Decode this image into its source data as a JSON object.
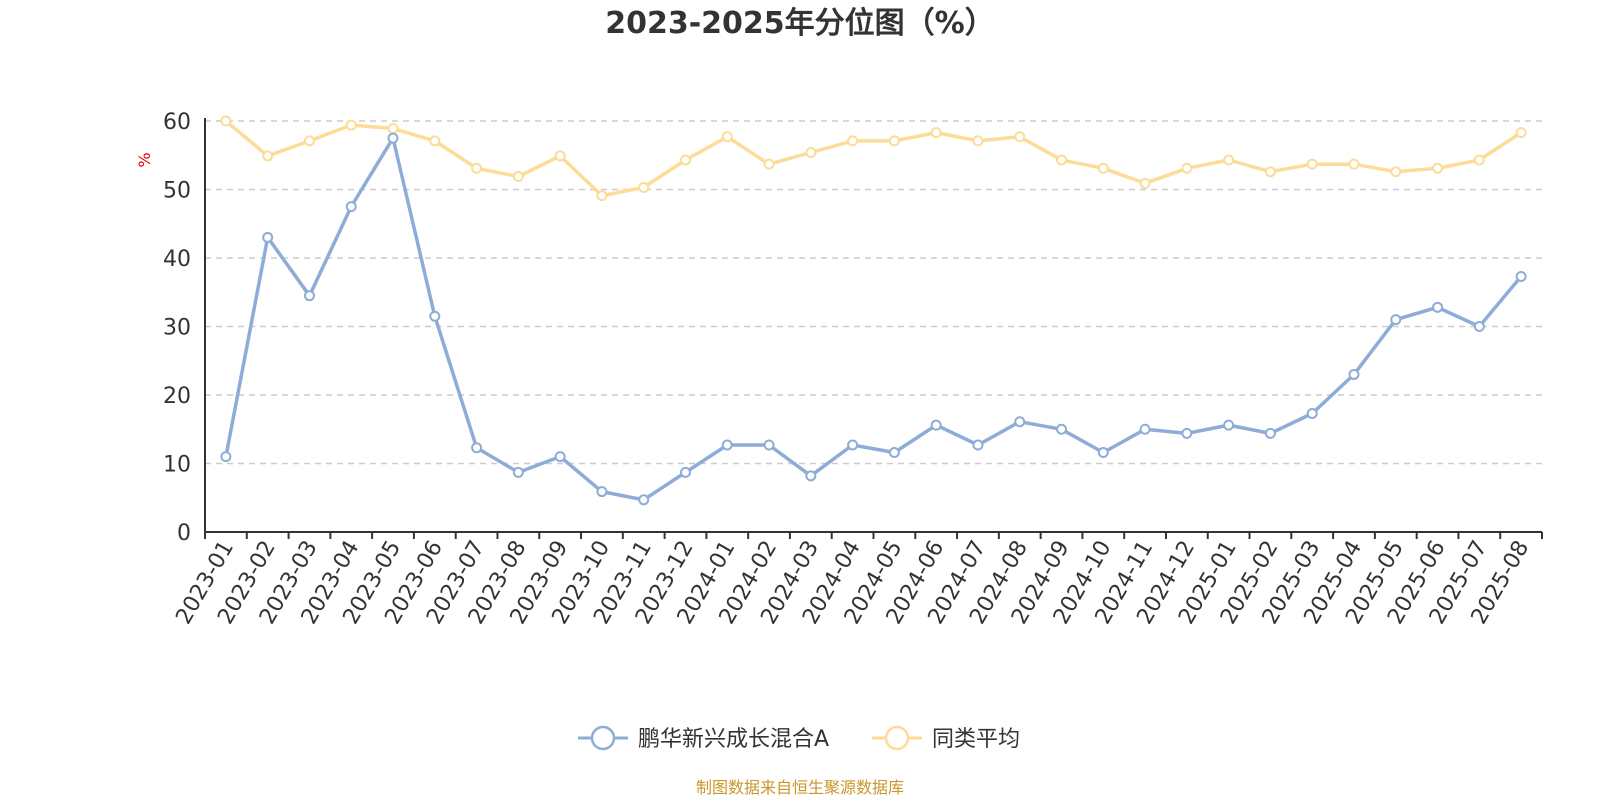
{
  "chart_data": {
    "type": "line",
    "title": "2023-2025年分位图（%）",
    "ylabel": "%",
    "ylim": [
      0,
      60
    ],
    "yticks": [
      0,
      10,
      20,
      30,
      40,
      50,
      60
    ],
    "grid": true,
    "legend_position": "bottom-center",
    "categories": [
      "2023-01",
      "2023-02",
      "2023-03",
      "2023-04",
      "2023-05",
      "2023-06",
      "2023-07",
      "2023-08",
      "2023-09",
      "2023-10",
      "2023-11",
      "2023-12",
      "2024-01",
      "2024-02",
      "2024-03",
      "2024-04",
      "2024-05",
      "2024-06",
      "2024-07",
      "2024-08",
      "2024-09",
      "2024-10",
      "2024-11",
      "2024-12",
      "2025-01",
      "2025-02",
      "2025-03",
      "2025-04",
      "2025-05",
      "2025-06",
      "2025-07",
      "2025-08"
    ],
    "series": [
      {
        "name": "鹏华新兴成长混合A",
        "color": "#8eacd8",
        "values": [
          11,
          43,
          34.5,
          47.5,
          57.5,
          31.5,
          12.3,
          8.7,
          11,
          5.9,
          4.7,
          8.7,
          12.7,
          12.7,
          8.2,
          12.7,
          11.6,
          15.6,
          12.7,
          16.1,
          15,
          11.6,
          15,
          14.4,
          15.6,
          14.4,
          17.3,
          23,
          31,
          32.8,
          30,
          37.3
        ]
      },
      {
        "name": "同类平均",
        "color": "#fcdc97",
        "values": [
          60,
          54.9,
          57.1,
          59.4,
          58.9,
          57.1,
          53.1,
          51.9,
          54.9,
          49.1,
          50.3,
          54.3,
          57.7,
          53.7,
          55.4,
          57.1,
          57.1,
          58.3,
          57.1,
          57.7,
          54.3,
          53.1,
          50.9,
          53.1,
          54.3,
          52.6,
          53.7,
          53.7,
          52.6,
          53.1,
          54.3,
          58.3
        ]
      }
    ]
  },
  "footer": {
    "source": "制图数据来自恒生聚源数据库"
  }
}
